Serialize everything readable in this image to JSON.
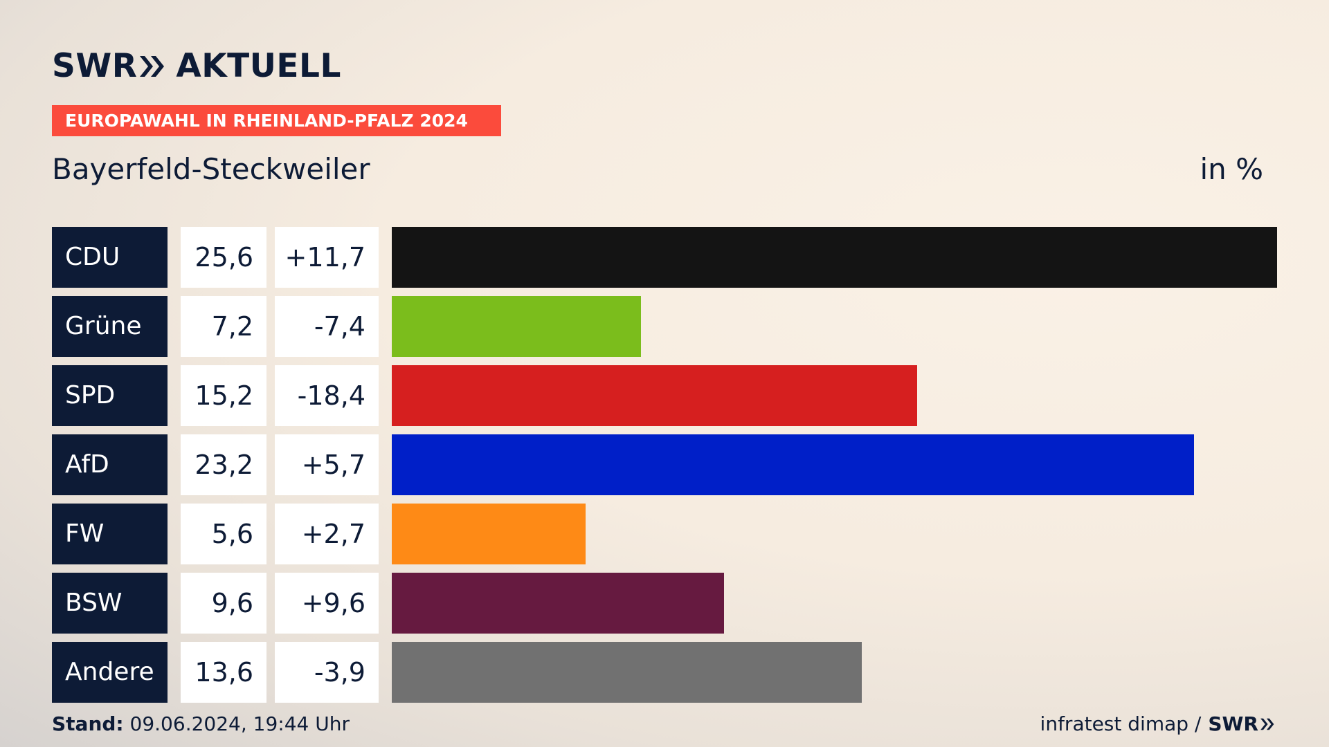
{
  "header": {
    "brand_left": "SWR",
    "brand_right": "AKTUELL",
    "badge": "EUROPAWAHL IN RHEINLAND-PFALZ 2024",
    "subtitle": "Bayerfeld-Steckweiler",
    "unit": "in %"
  },
  "chart_data": {
    "type": "bar",
    "orientation": "horizontal",
    "categories": [
      "CDU",
      "Grüne",
      "SPD",
      "AfD",
      "FW",
      "BSW",
      "Andere"
    ],
    "values": [
      25.6,
      7.2,
      15.2,
      23.2,
      5.6,
      9.6,
      13.6
    ],
    "value_labels": [
      "25,6",
      "7,2",
      "15,2",
      "23,2",
      "5,6",
      "9,6",
      "13,6"
    ],
    "changes": [
      "+11,7",
      "-7,4",
      "-18,4",
      "+5,7",
      "+2,7",
      "+9,6",
      "-3,9"
    ],
    "colors": [
      "#141414",
      "#7bbd1c",
      "#d61f1f",
      "#001fc8",
      "#fe8a16",
      "#661a40",
      "#717171"
    ],
    "xlim": [
      0,
      25.6
    ],
    "grid": false,
    "legend": "none"
  },
  "footer": {
    "stand_label": "Stand:",
    "stand_value": "09.06.2024, 19:44 Uhr",
    "source": "infratest dimap /",
    "source_brand": "SWR"
  }
}
